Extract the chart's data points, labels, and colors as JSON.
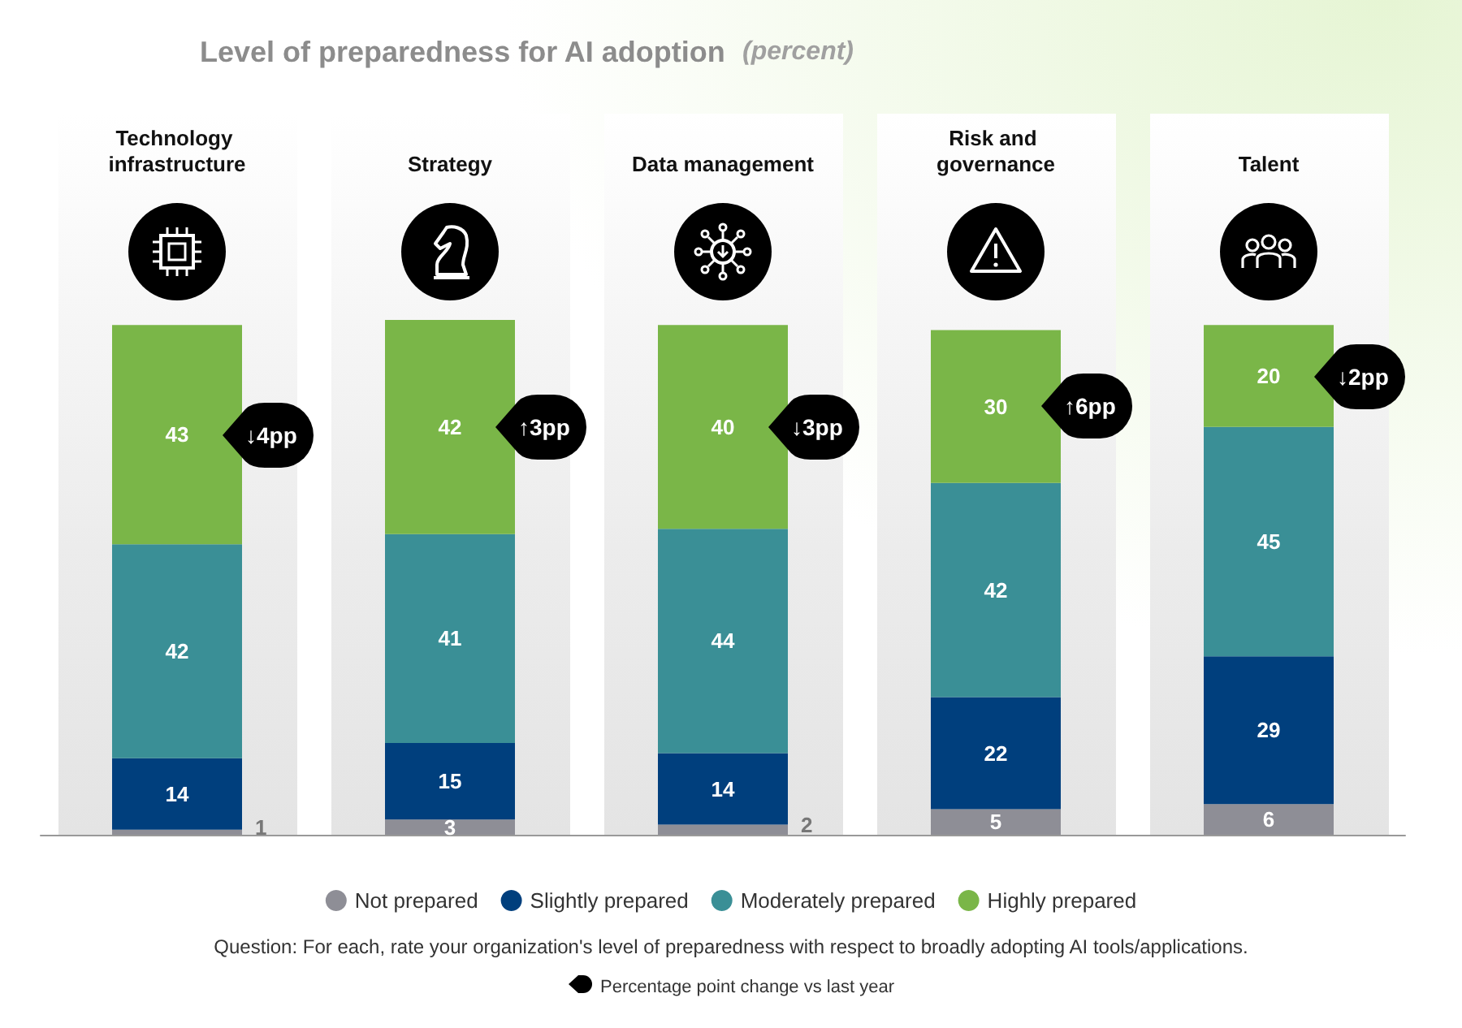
{
  "chart_data": {
    "type": "bar",
    "title": "Level of preparedness for AI adoption",
    "subtitle": "(percent)",
    "categories": [
      "Technology infrastructure",
      "Strategy",
      "Data management",
      "Risk and governance",
      "Talent"
    ],
    "stacked": true,
    "data_labels": true,
    "legend": "bottom",
    "series": [
      {
        "name": "Not prepared",
        "color": "#8e8e96",
        "values": [
          1,
          3,
          2,
          5,
          6
        ]
      },
      {
        "name": "Slightly prepared",
        "color": "#003f7d",
        "values": [
          14,
          15,
          14,
          22,
          29
        ]
      },
      {
        "name": "Moderately prepared",
        "color": "#3a8f96",
        "values": [
          42,
          41,
          44,
          42,
          45
        ]
      },
      {
        "name": "Highly prepared",
        "color": "#7ab648",
        "values": [
          43,
          42,
          40,
          30,
          20
        ]
      }
    ],
    "annotations": [
      "↓4pp",
      "↑3pp",
      "↓3pp",
      "↑6pp",
      "↓2pp",
      "Question: For each, rate your organization's level of preparedness with respect to broadly adopting AI tools/applications.",
      "Percentage point change vs last year"
    ]
  }
}
